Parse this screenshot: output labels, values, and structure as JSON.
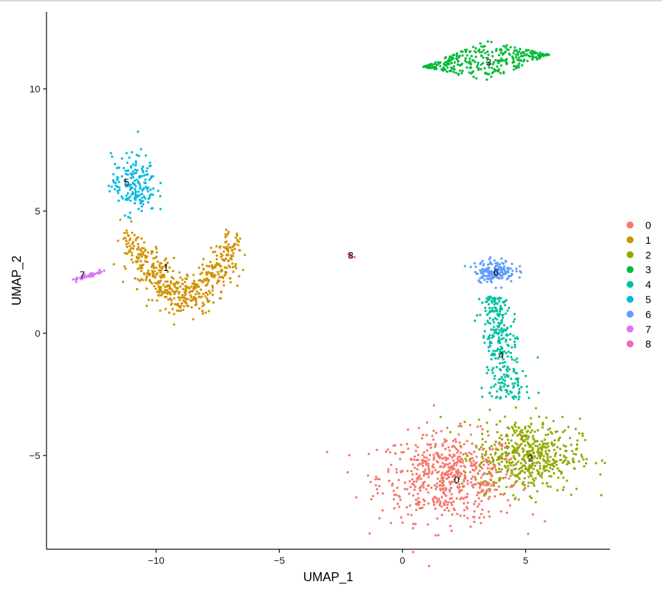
{
  "chart_data": {
    "type": "scatter",
    "title": "",
    "xlabel": "UMAP_1",
    "ylabel": "UMAP_2",
    "xlim": [
      -14.3,
      8.3
    ],
    "ylim": [
      -8.7,
      13.1
    ],
    "grid": false,
    "legend_position": "right",
    "x_ticks": [
      -10,
      -5,
      0,
      5
    ],
    "y_ticks": [
      -5,
      0,
      5,
      10
    ],
    "x_tick_labels": [
      "−10",
      "−5",
      "0",
      "5"
    ],
    "y_tick_labels": [
      "−5",
      "0",
      "5",
      "10"
    ],
    "legend": [
      {
        "label": "0",
        "color": "#F8766D"
      },
      {
        "label": "1",
        "color": "#D39200"
      },
      {
        "label": "2",
        "color": "#93AA00"
      },
      {
        "label": "3",
        "color": "#00BA38"
      },
      {
        "label": "4",
        "color": "#00C19F"
      },
      {
        "label": "5",
        "color": "#00B9E3"
      },
      {
        "label": "6",
        "color": "#619CFF"
      },
      {
        "label": "7",
        "color": "#DB72FB"
      },
      {
        "label": "8",
        "color": "#FF61C3"
      }
    ],
    "clusters": [
      {
        "id": "0",
        "label_pos": [
          2.2,
          -6.0
        ],
        "center": [
          1.9,
          -5.9
        ],
        "spread": [
          1.9,
          1.2
        ],
        "n": 620,
        "shape": "blob"
      },
      {
        "id": "1",
        "label_pos": [
          -9.6,
          2.7
        ],
        "center": [
          -9.5,
          2.6
        ],
        "spread": [
          1.8,
          0.9
        ],
        "n": 560,
        "shape": "crescent"
      },
      {
        "id": "2",
        "label_pos": [
          5.2,
          -5.1
        ],
        "center": [
          5.1,
          -5.0
        ],
        "spread": [
          1.4,
          1.0
        ],
        "n": 520,
        "shape": "blob"
      },
      {
        "id": "3",
        "label_pos": [
          3.5,
          11.1
        ],
        "center": [
          3.4,
          11.15
        ],
        "spread": [
          1.7,
          0.35
        ],
        "n": 340,
        "shape": "diamond"
      },
      {
        "id": "4",
        "label_pos": [
          4.0,
          -0.9
        ],
        "center": [
          3.9,
          -0.6
        ],
        "spread": [
          0.45,
          1.7
        ],
        "n": 300,
        "shape": "column"
      },
      {
        "id": "5",
        "label_pos": [
          -11.2,
          6.2
        ],
        "center": [
          -10.9,
          6.1
        ],
        "spread": [
          0.6,
          0.8
        ],
        "n": 180,
        "shape": "blob"
      },
      {
        "id": "6",
        "label_pos": [
          3.8,
          2.5
        ],
        "center": [
          3.75,
          2.55
        ],
        "spread": [
          0.55,
          0.3
        ],
        "n": 170,
        "shape": "blob"
      },
      {
        "id": "7",
        "label_pos": [
          -13.0,
          2.4
        ],
        "center": [
          -12.8,
          2.4
        ],
        "spread": [
          0.45,
          0.1
        ],
        "n": 40,
        "shape": "streak"
      },
      {
        "id": "8",
        "label_pos": [
          -2.1,
          3.2
        ],
        "center": [
          -2.1,
          3.15
        ],
        "spread": [
          0.08,
          0.08
        ],
        "n": 6,
        "shape": "blob"
      }
    ]
  },
  "axes": {
    "x_title": "UMAP_1",
    "y_title": "UMAP_2"
  }
}
